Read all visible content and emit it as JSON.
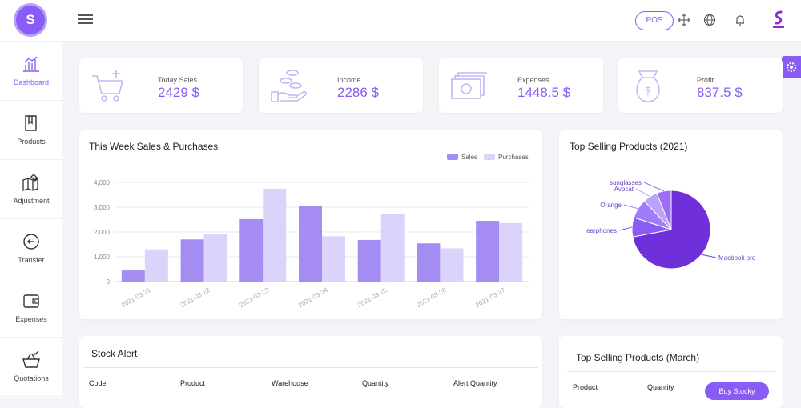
{
  "header": {
    "logo_letter": "S",
    "pos_label": "POS"
  },
  "sidebar": {
    "items": [
      {
        "label": "Dashboard"
      },
      {
        "label": "Products"
      },
      {
        "label": "Adjustment"
      },
      {
        "label": "Transfer"
      },
      {
        "label": "Expenses"
      },
      {
        "label": "Quotations"
      }
    ]
  },
  "stats": [
    {
      "label": "Today Sales",
      "value": "2429 $"
    },
    {
      "label": "Income",
      "value": "2286 $"
    },
    {
      "label": "Expenses",
      "value": "1448.5 $"
    },
    {
      "label": "Profit",
      "value": "837.5 $"
    }
  ],
  "weekly": {
    "title": "This Week Sales & Purchases"
  },
  "top_selling": {
    "title": "Top Selling Products (2021)"
  },
  "stock_alert": {
    "title": "Stock Alert",
    "columns": [
      "Code",
      "Product",
      "Warehouse",
      "Quantity",
      "Alert Quantity"
    ]
  },
  "top_march": {
    "title": "Top Selling Products (March)",
    "columns": [
      "Product",
      "Quantity"
    ],
    "buy_label": "Buy Stocky"
  },
  "colors": {
    "accent": "#8a5cf6",
    "sales": "#a48cf2",
    "purchases": "#dcd3fa"
  },
  "chart_data": [
    {
      "type": "bar",
      "categories": [
        "2021-03-21",
        "2021-03-22",
        "2021-03-23",
        "2021-03-24",
        "2021-03-25",
        "2021-03-26",
        "2021-03-27"
      ],
      "series": [
        {
          "name": "Sales",
          "values": [
            450,
            1700,
            2520,
            3060,
            1680,
            1540,
            2450
          ]
        },
        {
          "name": "Purchases",
          "values": [
            1300,
            1900,
            3740,
            1830,
            2740,
            1340,
            2360
          ]
        }
      ],
      "yticks": [
        "4,000",
        "3,000",
        "2,000",
        "1,000",
        "0"
      ],
      "ylim": [
        0,
        4000
      ],
      "legend": "top-right",
      "grid": true
    },
    {
      "type": "pie",
      "labels": [
        "Macbook pro",
        "earphones",
        "Orange",
        "Avocat",
        "sunglasses"
      ],
      "values": [
        72,
        8,
        8,
        6,
        6
      ],
      "colors": [
        "#6f2fd9",
        "#8a5cf6",
        "#a17cf7",
        "#bca3f9",
        "#9b6ff5"
      ]
    }
  ]
}
